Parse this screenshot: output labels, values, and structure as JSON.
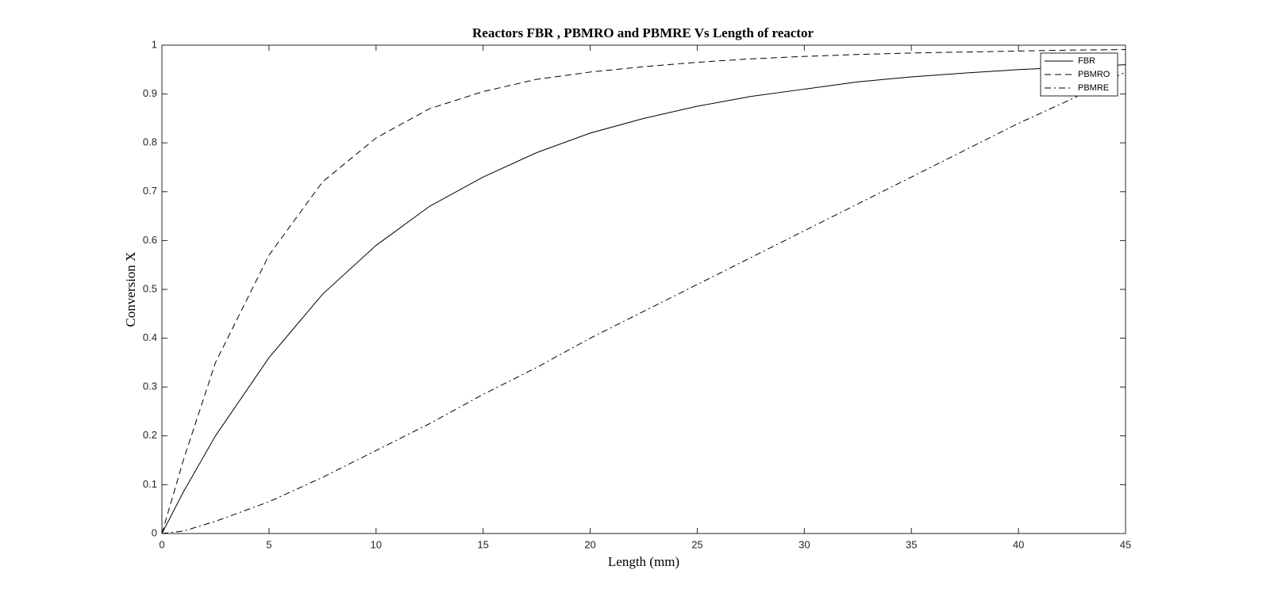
{
  "chart_data": {
    "type": "line",
    "title": "Reactors FBR , PBMRO and PBMRE Vs Length of reactor",
    "x_label": "Length (mm)",
    "y_label": "Conversion X",
    "x": [
      0,
      1,
      2.5,
      5,
      7.5,
      10,
      12.5,
      15,
      17.5,
      20,
      22.5,
      25,
      27.5,
      30,
      32.5,
      35,
      37.5,
      40,
      42.5,
      45
    ],
    "series": [
      {
        "name": "FBR",
        "color": "#000000",
        "linestyle": "solid",
        "values": [
          0,
          0.085,
          0.2,
          0.36,
          0.49,
          0.59,
          0.67,
          0.73,
          0.78,
          0.82,
          0.85,
          0.875,
          0.895,
          0.91,
          0.925,
          0.935,
          0.943,
          0.95,
          0.955,
          0.96
        ]
      },
      {
        "name": "PBMRO",
        "color": "#000000",
        "linestyle": "dashed",
        "values": [
          0,
          0.15,
          0.35,
          0.57,
          0.72,
          0.81,
          0.87,
          0.905,
          0.93,
          0.945,
          0.956,
          0.965,
          0.972,
          0.977,
          0.981,
          0.984,
          0.986,
          0.988,
          0.99,
          0.991
        ]
      },
      {
        "name": "PBMRE",
        "color": "#000000",
        "linestyle": "dashdot",
        "values": [
          0,
          0.005,
          0.025,
          0.065,
          0.115,
          0.17,
          0.225,
          0.285,
          0.34,
          0.4,
          0.455,
          0.51,
          0.565,
          0.62,
          0.675,
          0.73,
          0.785,
          0.84,
          0.89,
          0.945
        ]
      }
    ],
    "xlim": [
      0,
      45
    ],
    "xticks": [
      0,
      5,
      10,
      15,
      20,
      25,
      30,
      35,
      40,
      45
    ],
    "ylim": [
      0,
      1
    ],
    "yticks": [
      0,
      0.1,
      0.2,
      0.3,
      0.4,
      0.5,
      0.6,
      0.7,
      0.8,
      0.9,
      1
    ],
    "grid": false,
    "legend": "northeast"
  }
}
